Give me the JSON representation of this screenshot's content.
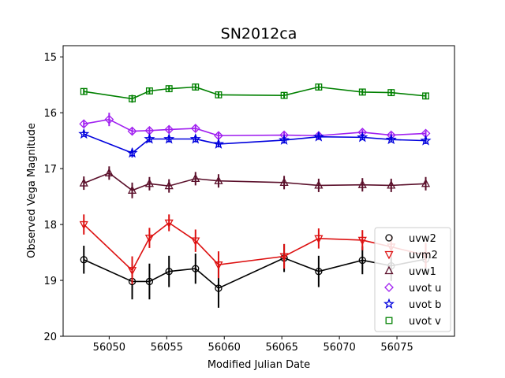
{
  "chart_data": {
    "type": "line",
    "title": "SN2012ca",
    "xlabel": "Modified Julian Date",
    "ylabel": "Observed Vega Magnitude",
    "xlim": [
      56046,
      56080
    ],
    "ylim": [
      20,
      14.8
    ],
    "y_inverted": true,
    "xticks": [
      56050,
      56055,
      56060,
      56065,
      56070,
      56075
    ],
    "yticks": [
      15,
      16,
      17,
      18,
      19,
      20
    ],
    "grid": false,
    "legend_position": "lower-right",
    "series": [
      {
        "name": "uvw2",
        "color": "#000000",
        "marker": "circle",
        "x": [
          56047.8,
          56052.0,
          56053.5,
          56055.2,
          56057.5,
          56059.5,
          56065.2,
          56068.2,
          56072.0,
          56074.5,
          56077.5
        ],
        "y": [
          18.63,
          19.02,
          19.02,
          18.84,
          18.79,
          19.14,
          18.6,
          18.84,
          18.64,
          18.74,
          18.62
        ],
        "err": [
          0.25,
          0.32,
          0.32,
          0.28,
          0.27,
          0.35,
          0.25,
          0.28,
          0.25,
          0.27,
          0.26
        ]
      },
      {
        "name": "uvm2",
        "color": "#dd1111",
        "marker": "triangle-down",
        "x": [
          56047.8,
          56052.0,
          56053.5,
          56055.2,
          56057.5,
          56059.5,
          56065.2,
          56068.2,
          56072.0,
          56074.5,
          56077.5
        ],
        "y": [
          18.0,
          18.82,
          18.24,
          17.97,
          18.29,
          18.72,
          18.57,
          18.25,
          18.28,
          18.4,
          18.55
        ],
        "err": [
          0.18,
          0.25,
          0.18,
          0.15,
          0.2,
          0.24,
          0.22,
          0.18,
          0.18,
          0.2,
          0.22
        ]
      },
      {
        "name": "uvw1",
        "color": "#5a0f2a",
        "marker": "triangle-up",
        "x": [
          56047.8,
          56050.0,
          56052.0,
          56053.5,
          56055.2,
          56057.5,
          56059.5,
          56065.2,
          56068.2,
          56072.0,
          56074.5,
          56077.5
        ],
        "y": [
          17.26,
          17.08,
          17.39,
          17.27,
          17.31,
          17.18,
          17.22,
          17.25,
          17.3,
          17.29,
          17.3,
          17.27
        ],
        "err": [
          0.12,
          0.12,
          0.14,
          0.12,
          0.12,
          0.12,
          0.12,
          0.12,
          0.12,
          0.12,
          0.12,
          0.12
        ]
      },
      {
        "name": "uvot u",
        "color": "#a020f0",
        "marker": "diamond",
        "x": [
          56047.8,
          56050.0,
          56052.0,
          56053.5,
          56055.2,
          56057.5,
          56059.5,
          56065.2,
          56068.2,
          56072.0,
          56074.5,
          56077.5
        ],
        "y": [
          16.2,
          16.12,
          16.33,
          16.32,
          16.3,
          16.28,
          16.41,
          16.4,
          16.41,
          16.35,
          16.4,
          16.37
        ],
        "err": [
          0.06,
          0.12,
          0.06,
          0.06,
          0.06,
          0.07,
          0.06,
          0.06,
          0.05,
          0.05,
          0.05,
          0.05
        ]
      },
      {
        "name": "uvot b",
        "color": "#0000dd",
        "marker": "star",
        "x": [
          56047.8,
          56052.0,
          56053.5,
          56055.2,
          56057.5,
          56059.5,
          56065.2,
          56068.2,
          56072.0,
          56074.5,
          56077.5
        ],
        "y": [
          16.38,
          16.72,
          16.47,
          16.47,
          16.47,
          16.56,
          16.49,
          16.43,
          16.44,
          16.48,
          16.5
        ],
        "err": [
          0.05,
          0.08,
          0.06,
          0.06,
          0.06,
          0.06,
          0.06,
          0.05,
          0.05,
          0.05,
          0.06
        ]
      },
      {
        "name": "uvot v",
        "color": "#008000",
        "marker": "square",
        "x": [
          56047.8,
          56052.0,
          56053.5,
          56055.2,
          56057.5,
          56059.5,
          56065.2,
          56068.2,
          56072.0,
          56074.5,
          56077.5
        ],
        "y": [
          15.62,
          15.75,
          15.61,
          15.57,
          15.54,
          15.68,
          15.69,
          15.54,
          15.63,
          15.64,
          15.7
        ],
        "err": [
          0.06,
          0.07,
          0.06,
          0.06,
          0.06,
          0.06,
          0.06,
          0.06,
          0.06,
          0.06,
          0.06
        ]
      }
    ]
  }
}
